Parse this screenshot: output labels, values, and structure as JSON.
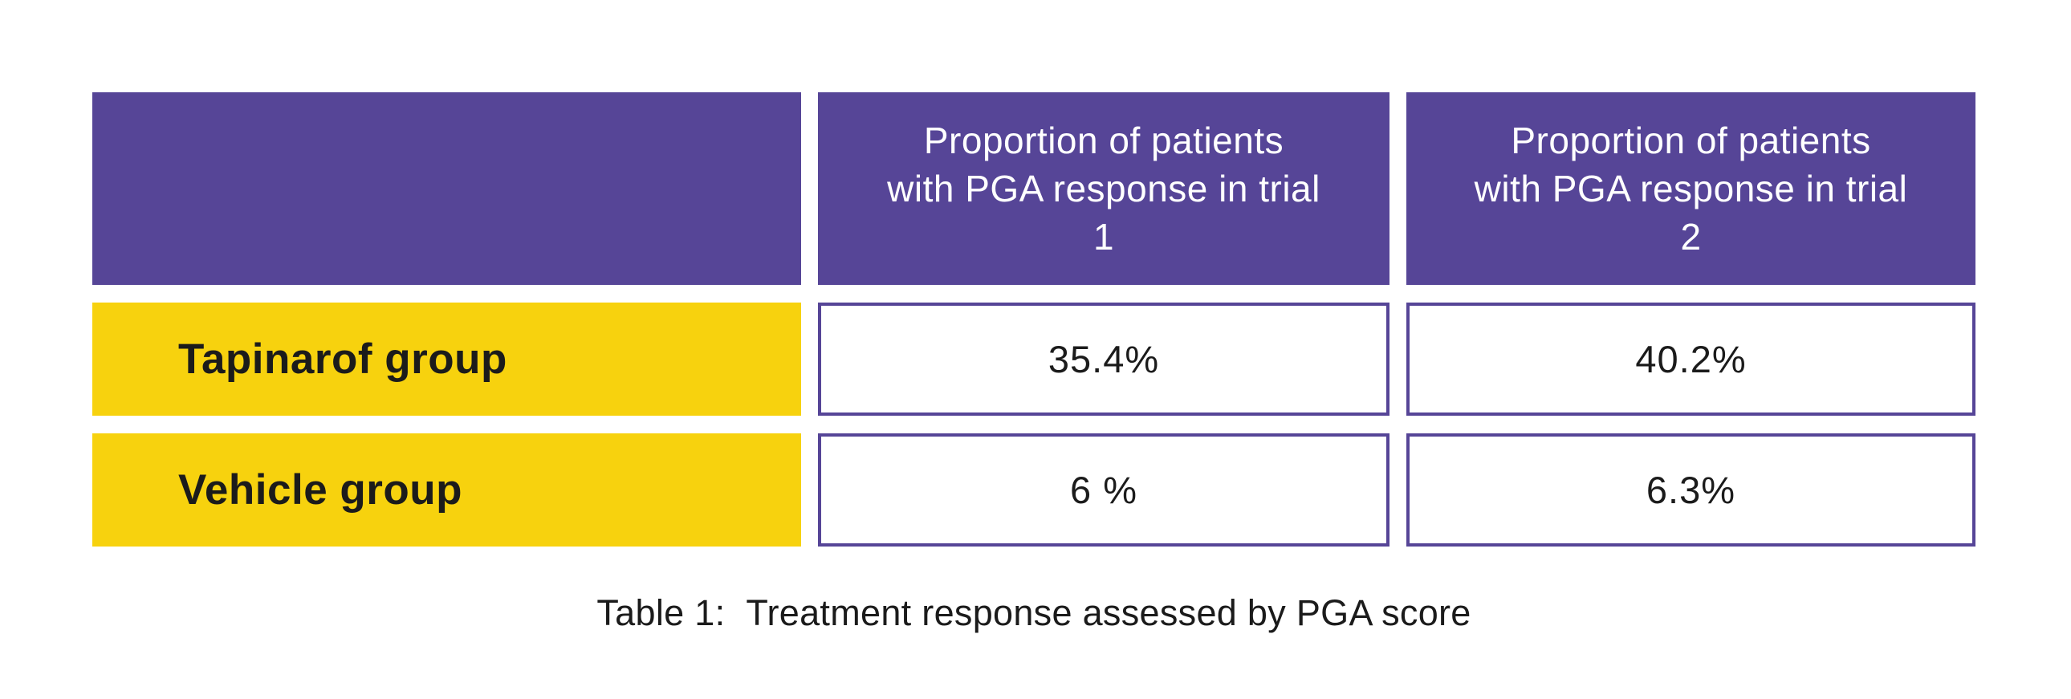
{
  "colors": {
    "header_purple": "#564597",
    "cell_border_purple": "#564597",
    "row_yellow": "#f7d20e",
    "header_text": "#ffffff",
    "body_text": "#1b1b1b"
  },
  "table": {
    "columns": [
      {
        "label": ""
      },
      {
        "label": "Proportion of patients with PGA response in trial 1"
      },
      {
        "label": "Proportion of patients with PGA response in trial 2"
      }
    ],
    "rows": [
      {
        "label": "Tapinarof group",
        "values": [
          "35.4%",
          "40.2%"
        ]
      },
      {
        "label": "Vehicle group",
        "values": [
          "6 %",
          "6.3%"
        ]
      }
    ]
  },
  "caption": {
    "label": "Table 1:",
    "text": "Treatment response assessed by PGA score"
  },
  "chart_data": {
    "type": "table",
    "title": "Table 1: Treatment response assessed by PGA score",
    "categories": [
      "Tapinarof group",
      "Vehicle group"
    ],
    "series": [
      {
        "name": "Proportion of patients with PGA response in trial 1",
        "values": [
          35.4,
          6
        ]
      },
      {
        "name": "Proportion of patients with PGA response in trial 2",
        "values": [
          40.2,
          6.3
        ]
      }
    ],
    "unit": "%"
  }
}
